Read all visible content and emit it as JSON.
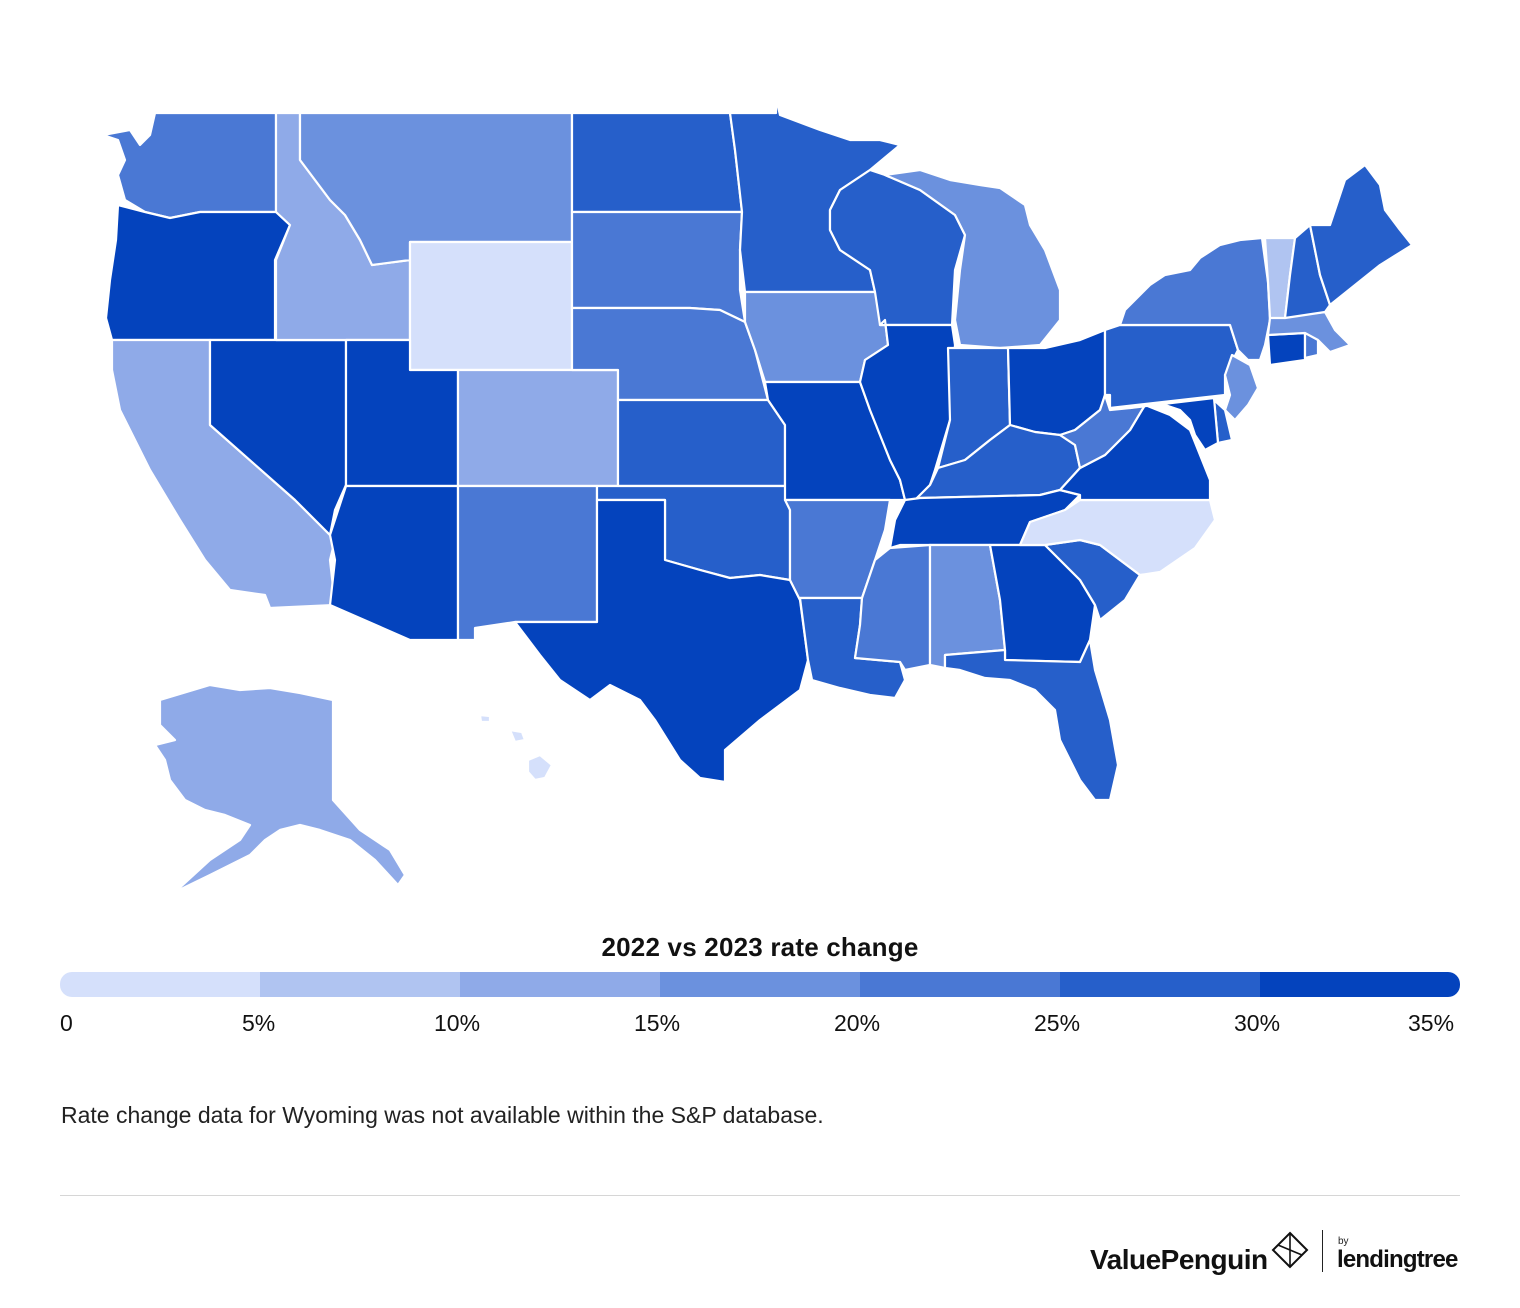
{
  "legend": {
    "title": "2022 vs 2023 rate change",
    "ticks": [
      "0",
      "5%",
      "10%",
      "15%",
      "20%",
      "25%",
      "30%",
      "35%"
    ],
    "colors": [
      "#d5e0fb",
      "#b0c4f1",
      "#8faae8",
      "#6b91de",
      "#4a78d4",
      "#265fca",
      "#0443bd"
    ]
  },
  "note": "Rate change data for Wyoming was not available within the S&P database.",
  "footer": {
    "brand": "ValuePenguin",
    "by": "by",
    "partner": "lendingtree"
  },
  "states": [
    {
      "id": "WA",
      "bin": 4
    },
    {
      "id": "OR",
      "bin": 6
    },
    {
      "id": "CA",
      "bin": 2
    },
    {
      "id": "NV",
      "bin": 6
    },
    {
      "id": "ID",
      "bin": 2
    },
    {
      "id": "MT",
      "bin": 3
    },
    {
      "id": "WY",
      "bin": 0
    },
    {
      "id": "UT",
      "bin": 6
    },
    {
      "id": "AZ",
      "bin": 6
    },
    {
      "id": "CO",
      "bin": 2
    },
    {
      "id": "NM",
      "bin": 4
    },
    {
      "id": "ND",
      "bin": 5
    },
    {
      "id": "SD",
      "bin": 4
    },
    {
      "id": "NE",
      "bin": 4
    },
    {
      "id": "KS",
      "bin": 5
    },
    {
      "id": "OK",
      "bin": 5
    },
    {
      "id": "TX",
      "bin": 6
    },
    {
      "id": "MN",
      "bin": 5
    },
    {
      "id": "IA",
      "bin": 3
    },
    {
      "id": "MO",
      "bin": 6
    },
    {
      "id": "AR",
      "bin": 4
    },
    {
      "id": "LA",
      "bin": 5
    },
    {
      "id": "WI",
      "bin": 5
    },
    {
      "id": "IL",
      "bin": 6
    },
    {
      "id": "MI",
      "bin": 3
    },
    {
      "id": "IN",
      "bin": 5
    },
    {
      "id": "OH",
      "bin": 6
    },
    {
      "id": "KY",
      "bin": 5
    },
    {
      "id": "TN",
      "bin": 6
    },
    {
      "id": "MS",
      "bin": 4
    },
    {
      "id": "AL",
      "bin": 3
    },
    {
      "id": "GA",
      "bin": 6
    },
    {
      "id": "FL",
      "bin": 5
    },
    {
      "id": "SC",
      "bin": 5
    },
    {
      "id": "NC",
      "bin": 0
    },
    {
      "id": "VA",
      "bin": 6
    },
    {
      "id": "WV",
      "bin": 4
    },
    {
      "id": "PA",
      "bin": 5
    },
    {
      "id": "NY",
      "bin": 4
    },
    {
      "id": "VT",
      "bin": 1
    },
    {
      "id": "NH",
      "bin": 5
    },
    {
      "id": "ME",
      "bin": 5
    },
    {
      "id": "MA",
      "bin": 3
    },
    {
      "id": "CT",
      "bin": 6
    },
    {
      "id": "RI",
      "bin": 4
    },
    {
      "id": "NJ",
      "bin": 3
    },
    {
      "id": "DE",
      "bin": 5
    },
    {
      "id": "MD",
      "bin": 6
    },
    {
      "id": "AK",
      "bin": 2
    },
    {
      "id": "HI",
      "bin": 0
    }
  ]
}
